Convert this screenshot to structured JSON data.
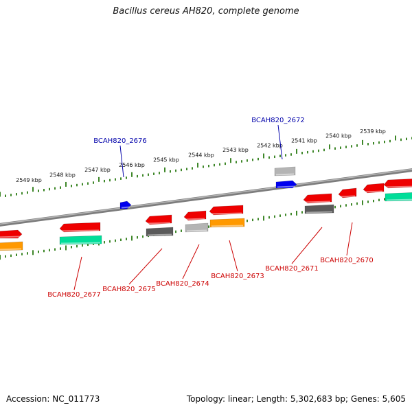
{
  "title": "Bacillus cereus AH820, complete genome",
  "footer": {
    "accession": "Accession: NC_011773",
    "summary": "Topology: linear; Length: 5,302,683 bp; Genes: 5,605"
  },
  "ticks": [
    "2549 kbp",
    "2548 kbp",
    "2547 kbp",
    "2546 kbp",
    "2545 kbp",
    "2544 kbp",
    "2543 kbp",
    "2542 kbp",
    "2541 kbp",
    "2540 kbp",
    "2539 kbp"
  ],
  "colors": {
    "red": "#ee0000",
    "orange": "#ff9900",
    "teal": "#00dd99",
    "dark_gray": "#5a5a5a",
    "light_gray": "#b4b4b4",
    "blue": "#0000ee",
    "label_red": "#cc0000",
    "label_blue": "#0000aa",
    "tick_green": "#2a7a12"
  },
  "gene_labels": {
    "g2676": "BCAH820_2676",
    "g2672": "BCAH820_2672",
    "g2677": "BCAH820_2677",
    "g2675": "BCAH820_2675",
    "g2674": "BCAH820_2674",
    "g2673": "BCAH820_2673",
    "g2671": "BCAH820_2671",
    "g2670": "BCAH820_2670"
  }
}
